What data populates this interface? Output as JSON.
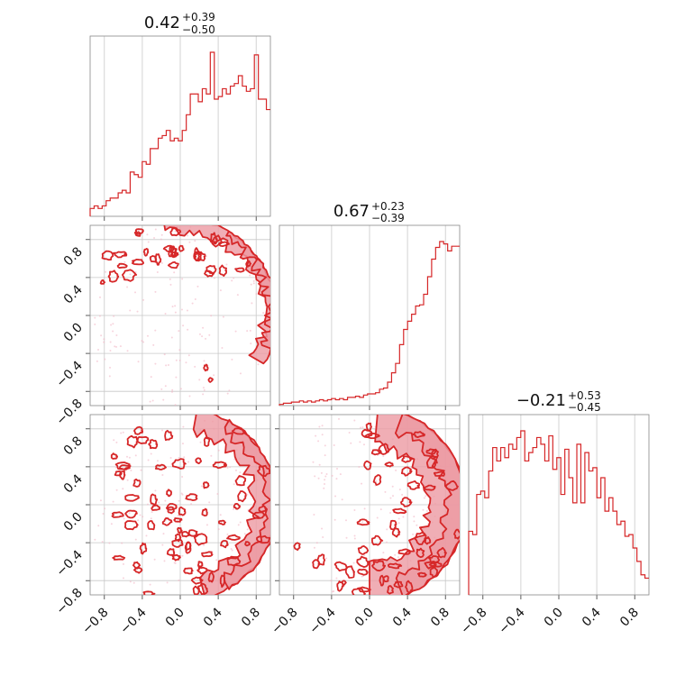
{
  "chart_data": [
    {
      "type": "corner",
      "parameters": [
        {
          "title_value": "0.42",
          "title_plus": "+0.39",
          "title_minus": "−0.50",
          "hist_range": [
            -0.95,
            0.95
          ],
          "hist_counts": [
            3,
            4,
            3,
            4,
            6,
            7,
            7,
            9,
            10,
            9,
            17,
            16,
            15,
            21,
            20,
            26,
            26,
            30,
            31,
            33,
            29,
            30,
            29,
            33,
            39,
            47,
            47,
            44,
            49,
            47,
            63,
            45,
            46,
            49,
            47,
            50,
            51,
            54,
            50,
            48,
            49,
            62,
            45,
            45,
            41
          ]
        },
        {
          "title_value": "0.67",
          "title_plus": "+0.23",
          "title_minus": "−0.39",
          "hist_range": [
            -0.95,
            0.95
          ],
          "hist_counts": [
            1,
            2,
            2,
            3,
            3,
            4,
            3,
            4,
            3,
            4,
            5,
            4,
            5,
            6,
            5,
            6,
            5,
            7,
            7,
            8,
            7,
            9,
            10,
            10,
            11,
            14,
            15,
            20,
            28,
            36,
            52,
            65,
            72,
            78,
            85,
            86,
            95,
            110,
            125,
            135,
            140,
            138,
            132,
            136,
            136
          ]
        },
        {
          "title_value": "−0.21",
          "title_plus": "+0.53",
          "title_minus": "−0.45",
          "hist_range": [
            -0.95,
            0.95
          ],
          "hist_counts": [
            38,
            36,
            60,
            62,
            58,
            74,
            88,
            80,
            88,
            82,
            90,
            87,
            94,
            98,
            80,
            85,
            88,
            94,
            90,
            80,
            95,
            75,
            82,
            60,
            87,
            70,
            55,
            90,
            55,
            85,
            74,
            76,
            58,
            70,
            50,
            58,
            50,
            42,
            44,
            35,
            36,
            28,
            20,
            12,
            10
          ]
        }
      ],
      "tick_labels": [
        "−0.8",
        "−0.4",
        "0.0",
        "0.4",
        "0.8"
      ],
      "tick_values": [
        -0.8,
        -0.4,
        0.0,
        0.4,
        0.8
      ],
      "axis_range": [
        -0.95,
        0.95
      ],
      "grid": true,
      "colors": {
        "line": "#d62728",
        "fill": "#ec9aa2",
        "scatter": "#f2b8c6"
      }
    }
  ]
}
